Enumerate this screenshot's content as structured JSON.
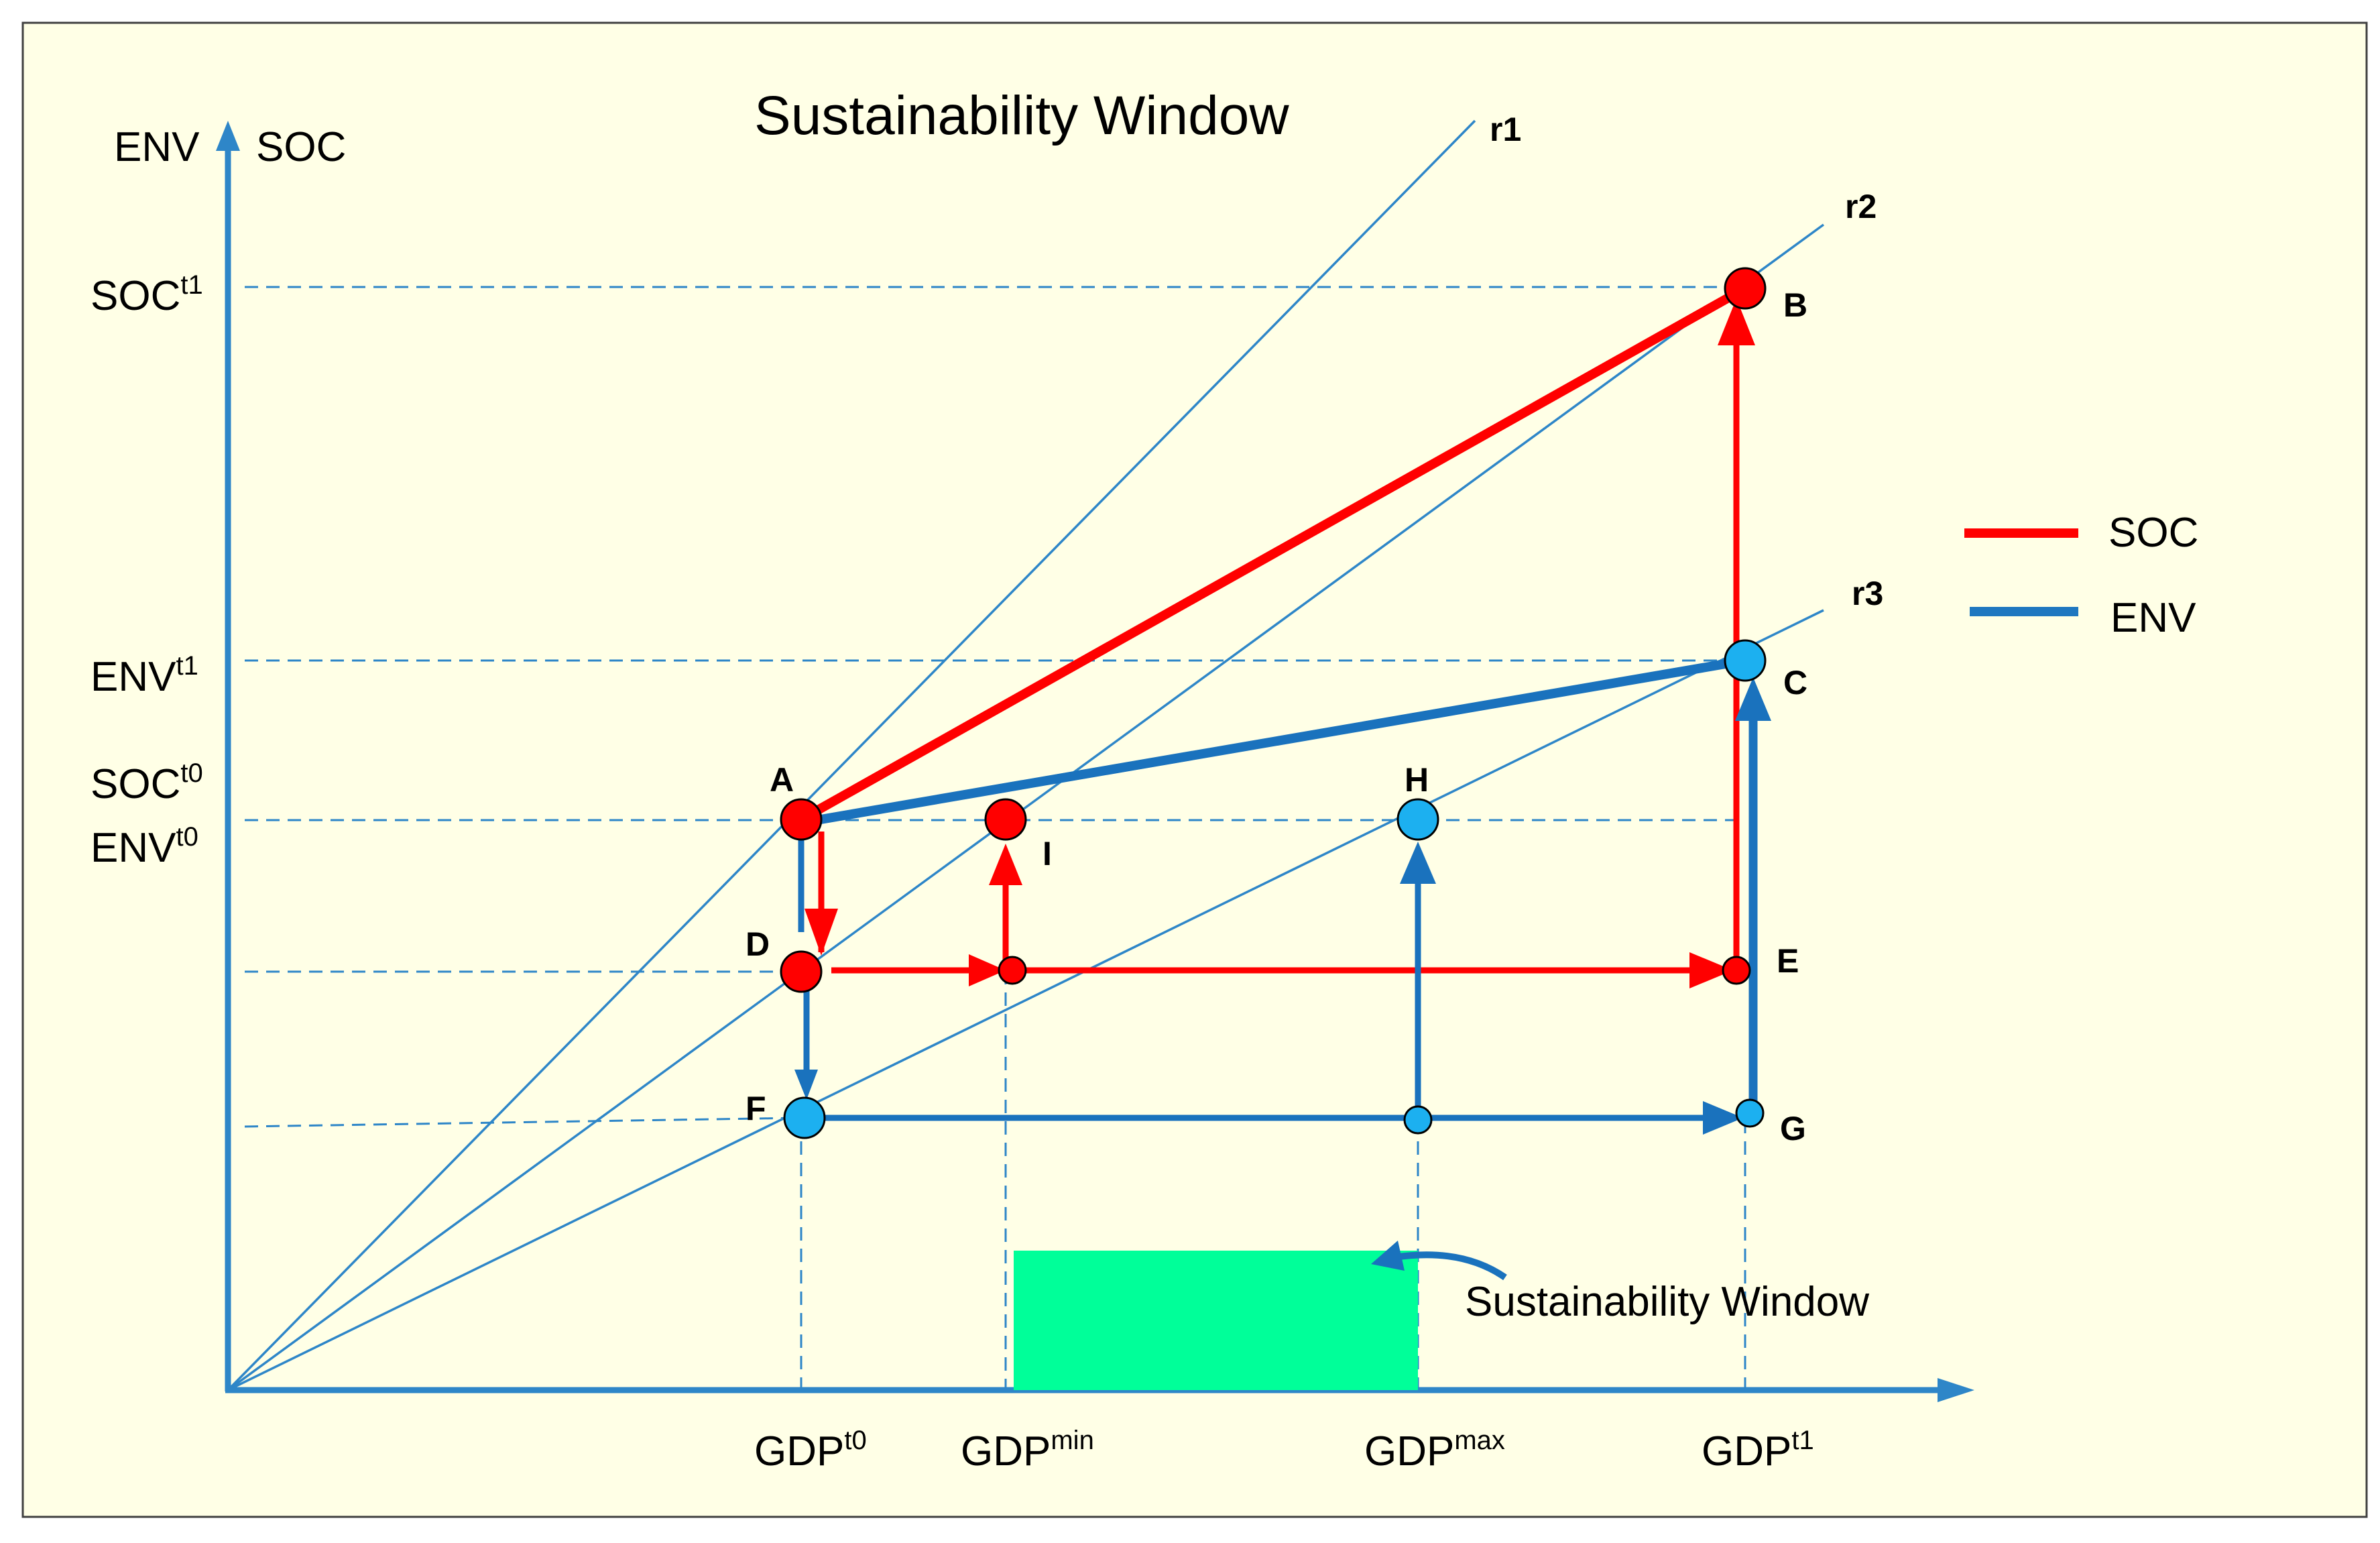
{
  "title": "Sustainability Window",
  "y_axis": {
    "label_env": "ENV",
    "label_soc": "SOC"
  },
  "y_ticks": [
    {
      "id": "soc-t1",
      "base": "SOC",
      "sup": "t1"
    },
    {
      "id": "env-t1",
      "base": "ENV",
      "sup": "t1"
    },
    {
      "id": "soc-t0",
      "base": "SOC",
      "sup": "t0"
    },
    {
      "id": "env-t0",
      "base": "ENV",
      "sup": "t0"
    }
  ],
  "x_ticks": [
    {
      "id": "gdp-t0",
      "base": "GDP",
      "sup": "t0"
    },
    {
      "id": "gdp-min",
      "base": "GDP",
      "sup": "min"
    },
    {
      "id": "gdp-max",
      "base": "GDP",
      "sup": "max"
    },
    {
      "id": "gdp-t1",
      "base": "GDP",
      "sup": "t1"
    }
  ],
  "rays": [
    "r1",
    "r2",
    "r3"
  ],
  "points": [
    "A",
    "B",
    "C",
    "D",
    "E",
    "F",
    "G",
    "H",
    "I"
  ],
  "legend": [
    {
      "label": "SOC",
      "color": "#ff0000"
    },
    {
      "label": "ENV",
      "color": "#1f77c0"
    }
  ],
  "window_label": "Sustainability Window",
  "colors": {
    "background": "#ffffe6",
    "axis": "#2e86c8",
    "soc": "#ff0000",
    "env": "#1a72bd",
    "env_point": "#1cb0f0",
    "window": "#00ff99"
  }
}
